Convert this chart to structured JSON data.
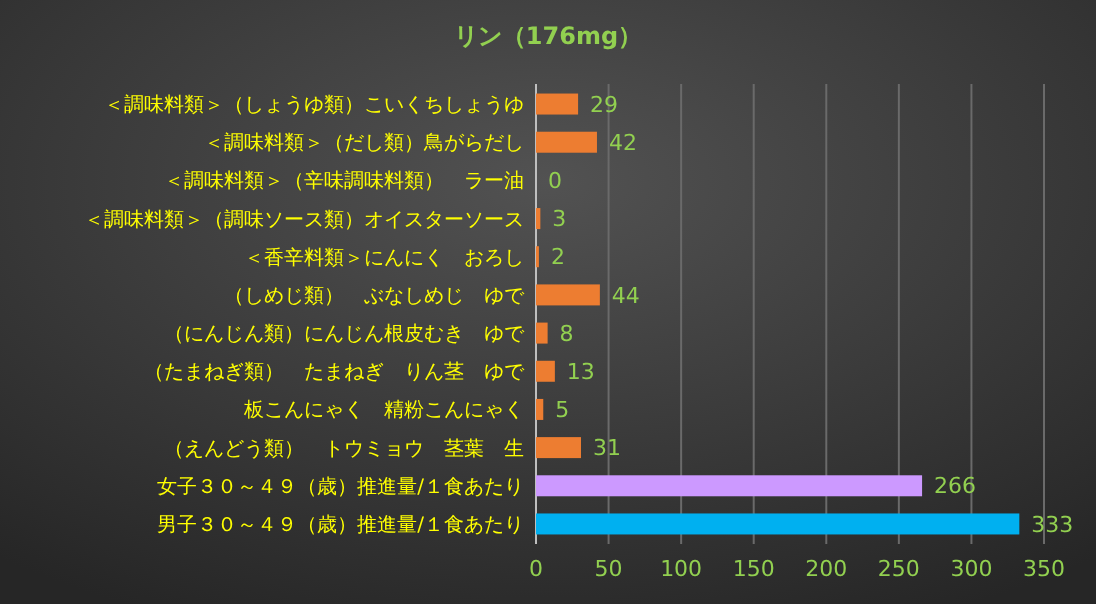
{
  "chart_data": {
    "type": "bar",
    "orientation": "horizontal",
    "title": "リン（176mg）",
    "categories": [
      "＜調味料類＞（しょうゆ類）こいくちしょうゆ",
      "＜調味料類＞（だし類）鳥がらだし",
      "＜調味料類＞（辛味調味料類）　ラー油",
      "＜調味料類＞（調味ソース類）オイスターソース",
      "＜香辛料類＞にんにく　おろし",
      "（しめじ類）　ぶなしめじ　ゆで",
      "（にんじん類）にんじん根皮むき　ゆで",
      "（たまねぎ類）　たまねぎ　りん茎　ゆで",
      "板こんにゃく　精粉こんにゃく",
      "（えんどう類）　トウミョウ　茎葉　生",
      "女子３０～４９（歳）推進量/１食あたり",
      "男子３０～４９（歳）推進量/１食あたり"
    ],
    "values": [
      29,
      42,
      0,
      3,
      2,
      44,
      8,
      13,
      5,
      31,
      266,
      333
    ],
    "colors": [
      "#ed7d31",
      "#ed7d31",
      "#ed7d31",
      "#ed7d31",
      "#ed7d31",
      "#ed7d31",
      "#ed7d31",
      "#ed7d31",
      "#ed7d31",
      "#ed7d31",
      "#cc99ff",
      "#00b0f0"
    ],
    "xlim": [
      0,
      350
    ],
    "xticks": [
      0,
      50,
      100,
      150,
      200,
      250,
      300,
      350
    ],
    "grid": "x",
    "data_labels": true
  }
}
